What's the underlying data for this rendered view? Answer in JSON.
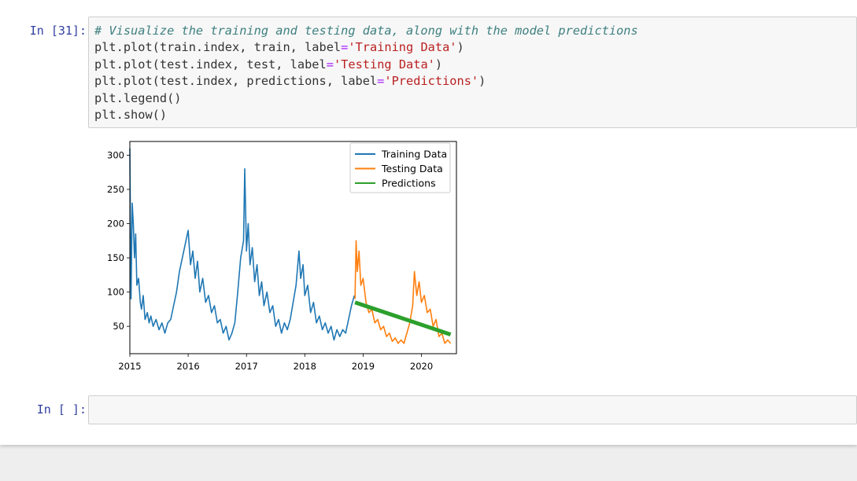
{
  "cell1": {
    "prompt": "In [31]:",
    "code_lines": [
      [
        {
          "t": "comment",
          "s": "# Visualize the training and testing data, along with the model predictions"
        }
      ],
      [
        {
          "t": "plain",
          "s": "plt.plot(train.index, train, label"
        },
        {
          "t": "op",
          "s": "="
        },
        {
          "t": "str",
          "s": "'Training Data'"
        },
        {
          "t": "plain",
          "s": ")"
        }
      ],
      [
        {
          "t": "plain",
          "s": "plt.plot(test.index, test, label"
        },
        {
          "t": "op",
          "s": "="
        },
        {
          "t": "str",
          "s": "'Testing Data'"
        },
        {
          "t": "plain",
          "s": ")"
        }
      ],
      [
        {
          "t": "plain",
          "s": "plt.plot(test.index, predictions, label"
        },
        {
          "t": "op",
          "s": "="
        },
        {
          "t": "str",
          "s": "'Predictions'"
        },
        {
          "t": "plain",
          "s": ")"
        }
      ],
      [
        {
          "t": "plain",
          "s": "plt.legend()"
        }
      ],
      [
        {
          "t": "plain",
          "s": "plt.show()"
        }
      ]
    ]
  },
  "cell2": {
    "prompt": "In [ ]:"
  },
  "chart_data": {
    "type": "line",
    "title": "",
    "xlabel": "",
    "ylabel": "",
    "xlim": [
      2015.0,
      2020.6
    ],
    "ylim": [
      10,
      320
    ],
    "xticks": [
      2015,
      2016,
      2017,
      2018,
      2019,
      2020
    ],
    "yticks": [
      50,
      100,
      150,
      200,
      250,
      300
    ],
    "grid": false,
    "legend_position": "top-right",
    "series": [
      {
        "name": "Training Data",
        "color": "#1f77b4",
        "points": [
          [
            2015.0,
            310
          ],
          [
            2015.02,
            90
          ],
          [
            2015.04,
            230
          ],
          [
            2015.06,
            200
          ],
          [
            2015.08,
            150
          ],
          [
            2015.1,
            185
          ],
          [
            2015.12,
            110
          ],
          [
            2015.15,
            120
          ],
          [
            2015.18,
            85
          ],
          [
            2015.2,
            75
          ],
          [
            2015.23,
            95
          ],
          [
            2015.26,
            60
          ],
          [
            2015.3,
            70
          ],
          [
            2015.33,
            55
          ],
          [
            2015.36,
            65
          ],
          [
            2015.4,
            50
          ],
          [
            2015.45,
            60
          ],
          [
            2015.5,
            45
          ],
          [
            2015.55,
            55
          ],
          [
            2015.6,
            40
          ],
          [
            2015.65,
            55
          ],
          [
            2015.7,
            60
          ],
          [
            2015.75,
            80
          ],
          [
            2015.8,
            100
          ],
          [
            2015.85,
            130
          ],
          [
            2015.9,
            150
          ],
          [
            2015.95,
            170
          ],
          [
            2016.0,
            190
          ],
          [
            2016.04,
            140
          ],
          [
            2016.08,
            160
          ],
          [
            2016.12,
            120
          ],
          [
            2016.16,
            145
          ],
          [
            2016.2,
            100
          ],
          [
            2016.25,
            120
          ],
          [
            2016.3,
            85
          ],
          [
            2016.35,
            95
          ],
          [
            2016.4,
            70
          ],
          [
            2016.45,
            80
          ],
          [
            2016.5,
            55
          ],
          [
            2016.55,
            60
          ],
          [
            2016.6,
            40
          ],
          [
            2016.65,
            50
          ],
          [
            2016.7,
            30
          ],
          [
            2016.75,
            40
          ],
          [
            2016.8,
            55
          ],
          [
            2016.85,
            100
          ],
          [
            2016.9,
            150
          ],
          [
            2016.95,
            175
          ],
          [
            2016.97,
            280
          ],
          [
            2017.0,
            160
          ],
          [
            2017.03,
            200
          ],
          [
            2017.06,
            140
          ],
          [
            2017.1,
            165
          ],
          [
            2017.14,
            115
          ],
          [
            2017.18,
            140
          ],
          [
            2017.22,
            95
          ],
          [
            2017.26,
            115
          ],
          [
            2017.3,
            80
          ],
          [
            2017.35,
            100
          ],
          [
            2017.4,
            70
          ],
          [
            2017.45,
            80
          ],
          [
            2017.5,
            50
          ],
          [
            2017.55,
            60
          ],
          [
            2017.6,
            40
          ],
          [
            2017.65,
            55
          ],
          [
            2017.7,
            45
          ],
          [
            2017.75,
            60
          ],
          [
            2017.8,
            85
          ],
          [
            2017.85,
            110
          ],
          [
            2017.9,
            160
          ],
          [
            2017.93,
            120
          ],
          [
            2017.97,
            140
          ],
          [
            2018.0,
            95
          ],
          [
            2018.05,
            110
          ],
          [
            2018.1,
            70
          ],
          [
            2018.15,
            85
          ],
          [
            2018.2,
            55
          ],
          [
            2018.25,
            65
          ],
          [
            2018.3,
            45
          ],
          [
            2018.35,
            55
          ],
          [
            2018.4,
            40
          ],
          [
            2018.45,
            50
          ],
          [
            2018.5,
            30
          ],
          [
            2018.55,
            45
          ],
          [
            2018.6,
            35
          ],
          [
            2018.65,
            45
          ],
          [
            2018.7,
            40
          ],
          [
            2018.75,
            60
          ],
          [
            2018.8,
            80
          ],
          [
            2018.85,
            95
          ]
        ]
      },
      {
        "name": "Testing Data",
        "color": "#ff7f0e",
        "points": [
          [
            2018.86,
            90
          ],
          [
            2018.88,
            175
          ],
          [
            2018.9,
            130
          ],
          [
            2018.93,
            160
          ],
          [
            2018.96,
            110
          ],
          [
            2019.0,
            120
          ],
          [
            2019.05,
            85
          ],
          [
            2019.1,
            70
          ],
          [
            2019.15,
            75
          ],
          [
            2019.2,
            55
          ],
          [
            2019.25,
            60
          ],
          [
            2019.3,
            45
          ],
          [
            2019.35,
            50
          ],
          [
            2019.4,
            35
          ],
          [
            2019.45,
            40
          ],
          [
            2019.5,
            28
          ],
          [
            2019.55,
            33
          ],
          [
            2019.6,
            25
          ],
          [
            2019.65,
            30
          ],
          [
            2019.7,
            25
          ],
          [
            2019.75,
            40
          ],
          [
            2019.8,
            55
          ],
          [
            2019.85,
            80
          ],
          [
            2019.88,
            130
          ],
          [
            2019.92,
            95
          ],
          [
            2019.96,
            115
          ],
          [
            2020.0,
            85
          ],
          [
            2020.05,
            95
          ],
          [
            2020.1,
            70
          ],
          [
            2020.15,
            75
          ],
          [
            2020.2,
            50
          ],
          [
            2020.25,
            60
          ],
          [
            2020.3,
            35
          ],
          [
            2020.35,
            40
          ],
          [
            2020.4,
            25
          ],
          [
            2020.45,
            30
          ],
          [
            2020.5,
            25
          ]
        ]
      },
      {
        "name": "Predictions",
        "color": "#2ca02c",
        "points": [
          [
            2018.86,
            85
          ],
          [
            2020.5,
            38
          ]
        ]
      }
    ]
  }
}
